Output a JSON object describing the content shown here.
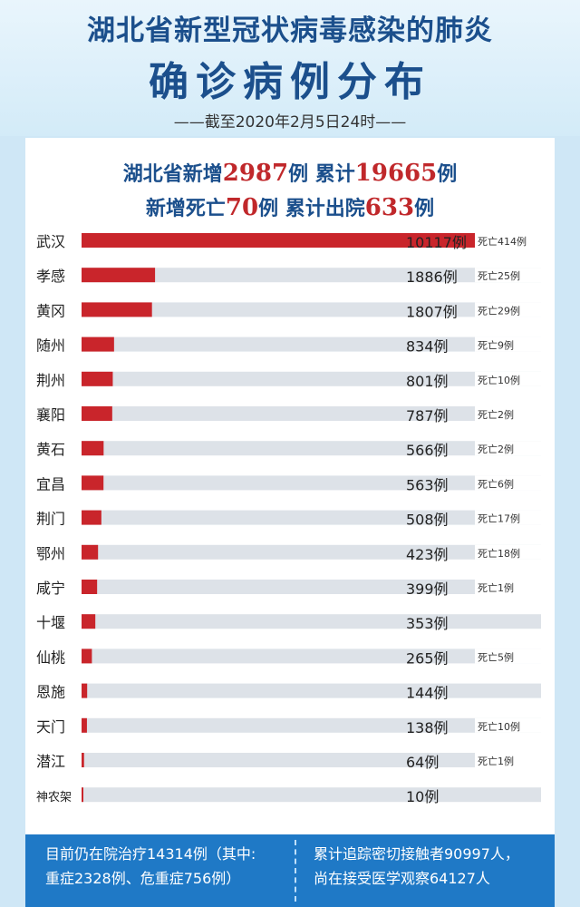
{
  "header": {
    "title_line1": "湖北省新型冠状病毒感染的肺炎",
    "title_line2": "确诊病例分布",
    "subtitle": "——截至2020年2月5日24时——"
  },
  "summary": {
    "line1": {
      "pre": "湖北省新增",
      "new_cases": "2987",
      "mid": "例  累计",
      "total_cases": "19665",
      "post": "例"
    },
    "line2": {
      "pre": "新增死亡",
      "new_deaths": "70",
      "mid": "例  累计出院",
      "discharged": "633",
      "post": "例"
    }
  },
  "chart_data": {
    "type": "bar",
    "orientation": "horizontal",
    "categories": [
      "武汉",
      "孝感",
      "黄冈",
      "随州",
      "荆州",
      "襄阳",
      "黄石",
      "宜昌",
      "荆门",
      "鄂州",
      "咸宁",
      "十堰",
      "仙桃",
      "恩施",
      "天门",
      "潜江",
      "神农架"
    ],
    "values": [
      10117,
      1886,
      1807,
      834,
      801,
      787,
      566,
      563,
      508,
      423,
      399,
      353,
      265,
      144,
      138,
      64,
      10
    ],
    "value_labels": [
      "10117例",
      "1886例",
      "1807例",
      "834例",
      "801例",
      "787例",
      "566例",
      "563例",
      "508例",
      "423例",
      "399例",
      "353例",
      "265例",
      "144例",
      "138例",
      "64例",
      "10例"
    ],
    "deaths": [
      414,
      25,
      29,
      9,
      10,
      2,
      2,
      6,
      17,
      18,
      1,
      null,
      5,
      null,
      10,
      1,
      null
    ],
    "death_labels": [
      "死亡414例",
      "死亡25例",
      "死亡29例",
      "死亡9例",
      "死亡10例",
      "死亡2例",
      "死亡2例",
      "死亡6例",
      "死亡17例",
      "死亡18例",
      "死亡1例",
      "",
      "死亡5例",
      "",
      "死亡10例",
      "死亡1例",
      ""
    ],
    "xlim": [
      0,
      10117
    ],
    "colors": {
      "bar": "#c9252b",
      "track": "#dde2e8"
    }
  },
  "footer": {
    "left_line1": "目前仍在院治疗14314例（其中:",
    "left_line2": "重症2328例、危重症756例）",
    "right_line1": "累计追踪密切接触者90997人，",
    "right_line2": "尚在接受医学观察64127人"
  }
}
